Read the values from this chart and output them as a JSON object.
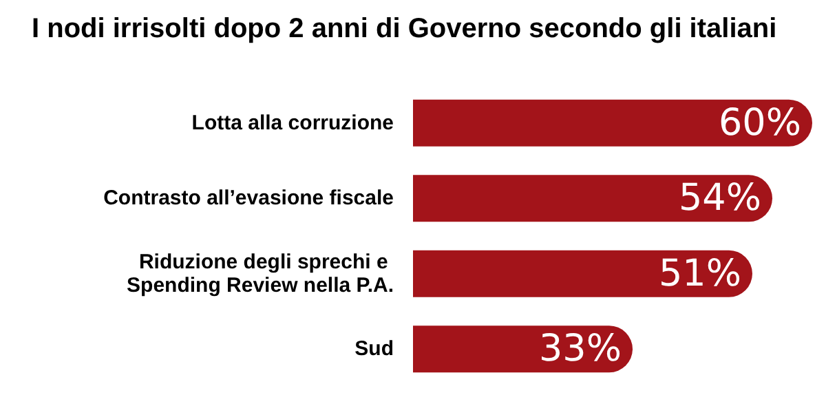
{
  "chart_data": {
    "type": "bar",
    "orientation": "horizontal",
    "title": "I nodi irrisolti dopo 2 anni di Governo secondo gli italiani",
    "categories": [
      "Lotta alla corruzione",
      "Contrasto all’evasione fiscale",
      "Riduzione degli sprechi e Spending Review nella P.A.",
      "Sud"
    ],
    "values": [
      60,
      54,
      51,
      33
    ],
    "color": "#a3141a",
    "value_labels": [
      "60%",
      "54%",
      "51%",
      "33%"
    ]
  }
}
